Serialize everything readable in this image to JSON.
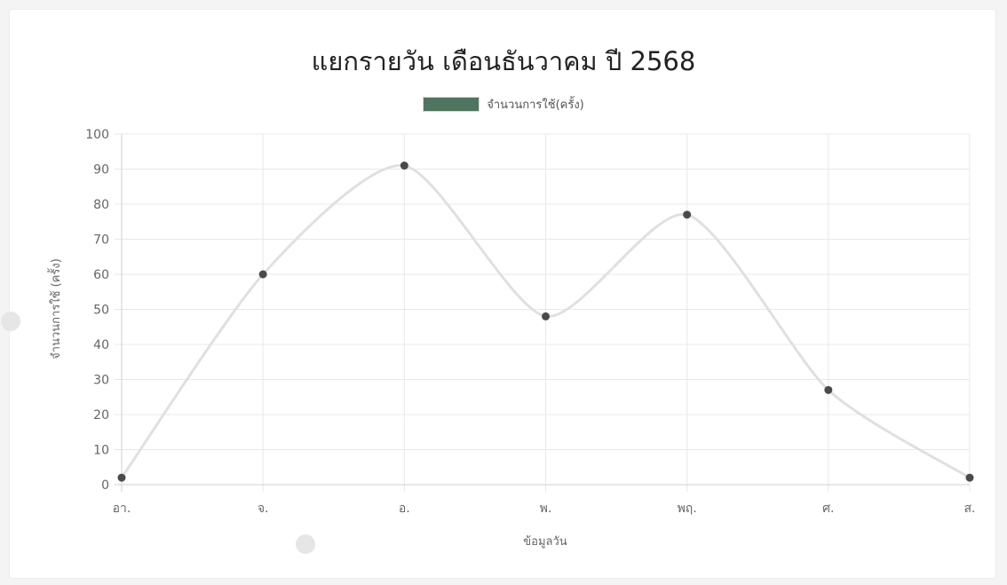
{
  "chart_data": {
    "type": "line",
    "title": "แยกรายวัน เดือนธันวาคม ปี 2568",
    "xlabel": "ข้อมูลวัน",
    "ylabel": "จำนวนการใช้ (ครั้ง)",
    "categories": [
      "อา.",
      "จ.",
      "อ.",
      "พ.",
      "พฤ.",
      "ศ.",
      "ส."
    ],
    "series": [
      {
        "name": "จำนวนการใช้(ครั้ง)",
        "values": [
          2,
          60,
          91,
          48,
          77,
          27,
          2
        ]
      }
    ],
    "ylim": [
      0,
      100
    ],
    "yticks": [
      "0",
      "10",
      "20",
      "30",
      "40",
      "50",
      "60",
      "70",
      "80",
      "90",
      "100"
    ],
    "grid": true,
    "legend": "top-center",
    "colors": {
      "line": "#e0e0e0",
      "point": "#4a4a4a",
      "legend_swatch": "#4f7560",
      "grid": "#e8e8e8"
    }
  }
}
